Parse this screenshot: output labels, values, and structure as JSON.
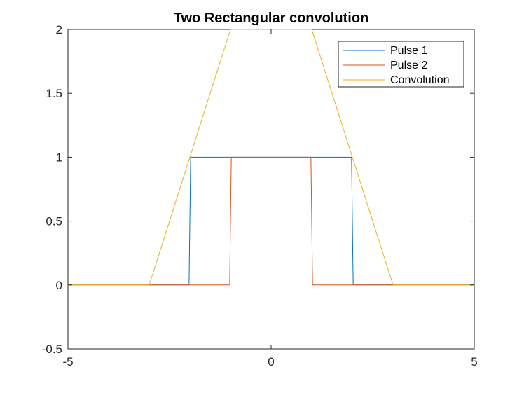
{
  "chart_data": {
    "type": "line",
    "title": "Two Rectangular convolution",
    "xlabel": "",
    "ylabel": "",
    "xlim": [
      -5,
      5
    ],
    "ylim": [
      -0.5,
      2
    ],
    "xticks": [
      -5,
      0,
      5
    ],
    "xtick_labels": [
      "-5",
      "0",
      "5"
    ],
    "yticks": [
      -0.5,
      0,
      0.5,
      1,
      1.5,
      2
    ],
    "ytick_labels": [
      "-0.5",
      "0",
      "0.5",
      "1",
      "1.5",
      "2"
    ],
    "grid": false,
    "legend_position": "top-right",
    "series": [
      {
        "name": "Pulse 1",
        "color": "#0072BD",
        "x": [
          -5,
          -2.02,
          -1.98,
          1.98,
          2.02,
          5
        ],
        "y": [
          0,
          0,
          1,
          1,
          0,
          0
        ]
      },
      {
        "name": "Pulse 2",
        "color": "#D95319",
        "x": [
          -5,
          -1.02,
          -0.98,
          0.98,
          1.02,
          5
        ],
        "y": [
          0,
          0,
          1,
          1,
          0,
          0
        ]
      },
      {
        "name": "Convolution",
        "color": "#EDB120",
        "x": [
          -5,
          -3,
          -1,
          1,
          3,
          5
        ],
        "y": [
          0,
          0,
          2,
          2,
          0,
          0
        ]
      }
    ]
  }
}
